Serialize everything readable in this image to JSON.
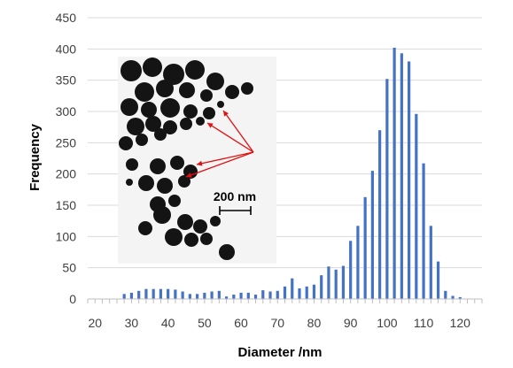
{
  "chart_data": {
    "type": "bar",
    "xlabel": "Diameter /nm",
    "ylabel": "Frequency",
    "xlim": [
      18,
      126
    ],
    "ylim": [
      0,
      450
    ],
    "x_ticks": [
      20,
      30,
      40,
      50,
      60,
      70,
      80,
      90,
      100,
      110,
      120
    ],
    "y_ticks": [
      0,
      50,
      100,
      150,
      200,
      250,
      300,
      350,
      400,
      450
    ],
    "grid": "horizontal",
    "bar_color": "#4472c4",
    "series": [
      {
        "x": [
          20,
          22,
          24,
          26,
          28,
          30,
          32,
          34,
          36,
          38,
          40,
          42,
          44,
          46,
          48,
          50,
          52,
          54,
          56,
          58,
          60,
          62,
          64,
          66,
          68,
          70,
          72,
          74,
          76,
          78,
          80,
          82,
          84,
          86,
          88,
          90,
          92,
          94,
          96,
          98,
          100,
          102,
          104,
          106,
          108,
          110,
          112,
          114,
          116,
          118,
          120,
          122,
          124
        ],
        "values": [
          0,
          0,
          0,
          0,
          8,
          10,
          13,
          16,
          16,
          16,
          16,
          15,
          12,
          8,
          8,
          10,
          12,
          13,
          4,
          7,
          10,
          10,
          7,
          14,
          12,
          13,
          20,
          33,
          17,
          20,
          23,
          38,
          52,
          47,
          53,
          93,
          117,
          163,
          205,
          270,
          352,
          402,
          393,
          380,
          296,
          217,
          117,
          60,
          13,
          5,
          3,
          0,
          0
        ]
      }
    ],
    "inset": {
      "description_label": "200 nm",
      "arrow_color": "#e01010"
    }
  }
}
